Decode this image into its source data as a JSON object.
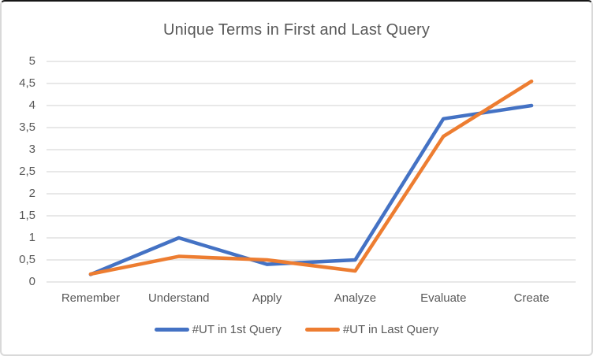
{
  "chart_data": {
    "type": "line",
    "title": "Unique Terms in First and Last Query",
    "xlabel": "",
    "ylabel": "",
    "categories": [
      "Remember",
      "Understand",
      "Apply",
      "Analyze",
      "Evaluate",
      "Create"
    ],
    "series": [
      {
        "name": "#UT in 1st Query",
        "color": "#4472C4",
        "values": [
          0.17,
          1.0,
          0.4,
          0.5,
          3.7,
          4.0
        ]
      },
      {
        "name": "#UT in Last Query",
        "color": "#ED7D31",
        "values": [
          0.18,
          0.58,
          0.5,
          0.25,
          3.3,
          4.55
        ]
      }
    ],
    "ylim": [
      0,
      5
    ],
    "y_ticks": [
      {
        "label": "0",
        "value": 0
      },
      {
        "label": "0,5",
        "value": 0.5
      },
      {
        "label": "1",
        "value": 1
      },
      {
        "label": "1,5",
        "value": 1.5
      },
      {
        "label": "2",
        "value": 2
      },
      {
        "label": "2,5",
        "value": 2.5
      },
      {
        "label": "3",
        "value": 3
      },
      {
        "label": "3,5",
        "value": 3.5
      },
      {
        "label": "4",
        "value": 4
      },
      {
        "label": "4,5",
        "value": 4.5
      },
      {
        "label": "5",
        "value": 5
      }
    ],
    "grid": true,
    "legend_position": "bottom"
  },
  "colors": {
    "gridline": "#d9d9d9",
    "axis_text": "#595959",
    "title_text": "#595959"
  }
}
